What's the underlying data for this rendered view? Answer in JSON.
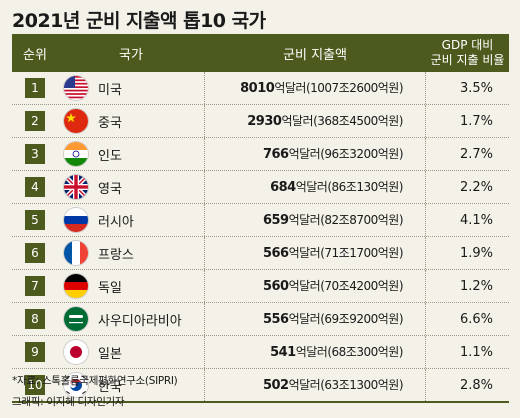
{
  "title": "2021년 군비 지출액 톱10 국가",
  "table": {
    "col_rank": "순위",
    "col_country": "국가",
    "col_spend": "군비 지출액",
    "col_ratio_line1": "GDP 대비",
    "col_ratio_line2": "군비 지출 비율"
  },
  "source": "*자료: 스톡홀름국제평화연구소(SIPRI)",
  "credit": "그래픽: 이지혜 디자인기자",
  "chart_data": {
    "type": "table",
    "title": "2021년 군비 지출액 톱10 국가",
    "columns": [
      "순위",
      "국가",
      "군비 지출액",
      "GDP 대비 군비 지출 비율"
    ],
    "rows": [
      {
        "rank": "1",
        "country": "미국",
        "flag": "us-flag-icon",
        "spend_usd": "8010",
        "spend_krw": "(1007조2600억원)",
        "ratio": "3.5%"
      },
      {
        "rank": "2",
        "country": "중국",
        "flag": "china-flag-icon",
        "spend_usd": "2930",
        "spend_krw": "(368조4500억원)",
        "ratio": "1.7%"
      },
      {
        "rank": "3",
        "country": "인도",
        "flag": "india-flag-icon",
        "spend_usd": "766",
        "spend_krw": "(96조3200억원)",
        "ratio": "2.7%"
      },
      {
        "rank": "4",
        "country": "영국",
        "flag": "uk-flag-icon",
        "spend_usd": "684",
        "spend_krw": "(86조130억원)",
        "ratio": "2.2%"
      },
      {
        "rank": "5",
        "country": "러시아",
        "flag": "russia-flag-icon",
        "spend_usd": "659",
        "spend_krw": "(82조8700억원)",
        "ratio": "4.1%"
      },
      {
        "rank": "6",
        "country": "프랑스",
        "flag": "france-flag-icon",
        "spend_usd": "566",
        "spend_krw": "(71조1700억원)",
        "ratio": "1.9%"
      },
      {
        "rank": "7",
        "country": "독일",
        "flag": "germany-flag-icon",
        "spend_usd": "560",
        "spend_krw": "(70조4200억원)",
        "ratio": "1.2%"
      },
      {
        "rank": "8",
        "country": "사우디아라비아",
        "flag": "saudi-flag-icon",
        "spend_usd": "556",
        "spend_krw": "(69조9200억원)",
        "ratio": "6.6%"
      },
      {
        "rank": "9",
        "country": "일본",
        "flag": "japan-flag-icon",
        "spend_usd": "541",
        "spend_krw": "(68조300억원)",
        "ratio": "1.1%"
      },
      {
        "rank": "10",
        "country": "한국",
        "flag": "korea-flag-icon",
        "spend_usd": "502",
        "spend_krw": "(63조1300억원)",
        "ratio": "2.8%"
      }
    ],
    "unit_usd": "억달러",
    "header_color": "#4d5a1e",
    "background_color": "#f4f1e8"
  }
}
